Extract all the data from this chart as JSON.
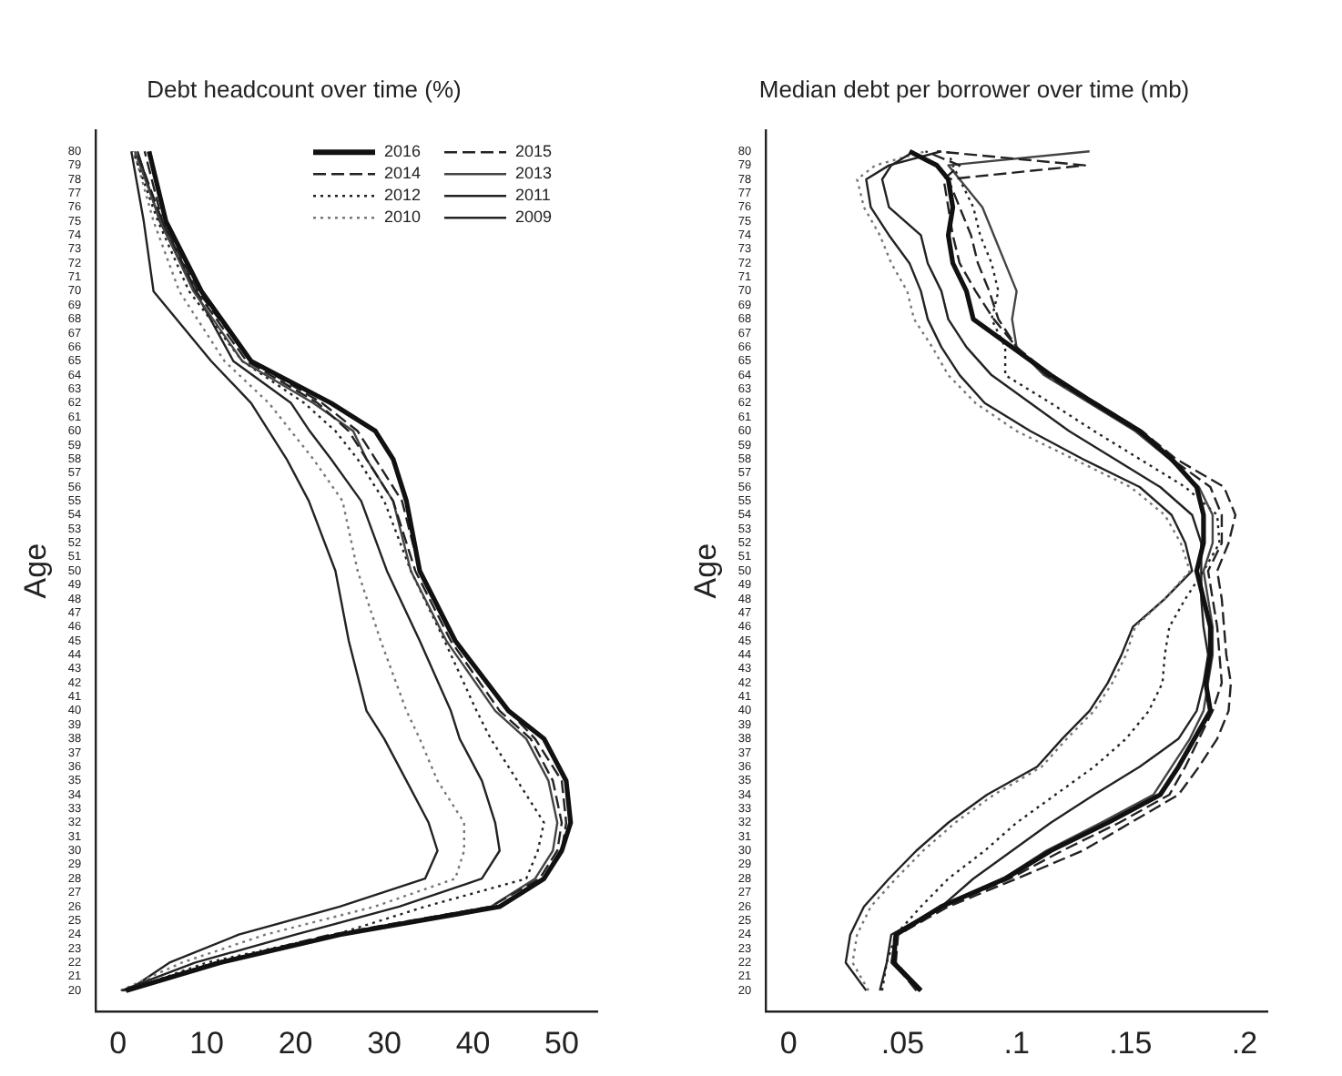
{
  "chart_data": [
    {
      "type": "line",
      "title": "Debt headcount over time (%)",
      "ylabel": "Age",
      "xlim": [
        -2.5,
        54
      ],
      "xticks": [
        0,
        10,
        20,
        30,
        40,
        50
      ],
      "ylim": [
        18.5,
        81.5
      ],
      "yticks": [
        20,
        21,
        22,
        23,
        24,
        25,
        26,
        27,
        28,
        29,
        30,
        31,
        32,
        33,
        34,
        35,
        36,
        37,
        38,
        39,
        40,
        41,
        42,
        43,
        44,
        45,
        46,
        47,
        48,
        49,
        50,
        51,
        52,
        53,
        54,
        55,
        56,
        57,
        58,
        59,
        60,
        61,
        62,
        63,
        64,
        65,
        66,
        67,
        68,
        69,
        70,
        71,
        72,
        73,
        74,
        75,
        76,
        77,
        78,
        79,
        80
      ],
      "grid": false,
      "marker": "none",
      "legend": "top right",
      "series": [
        {
          "name": "2016",
          "color": "#111111",
          "line_style": "solid",
          "x": [
            0.9,
            11.5,
            25,
            43,
            48,
            50,
            51,
            50.5,
            48,
            44,
            38,
            34,
            32.5,
            31,
            29,
            24,
            15,
            9.4,
            5.4,
            3.5
          ],
          "values": [
            20,
            22,
            24,
            26,
            28,
            30,
            32,
            35,
            38,
            40,
            45,
            50,
            55,
            58,
            60,
            62,
            65,
            70,
            75,
            80
          ]
        },
        {
          "name": "2015",
          "color": "#222222",
          "line_style": "dashed",
          "x": [
            0.8,
            11,
            25,
            43,
            48,
            50,
            50.5,
            50,
            47,
            44,
            38,
            34,
            32,
            29,
            27,
            23,
            15,
            9,
            5,
            3
          ],
          "values": [
            20,
            22,
            24,
            26,
            28,
            30,
            32,
            35,
            38,
            40,
            45,
            50,
            55,
            58,
            60,
            62,
            65,
            70,
            75,
            80
          ]
        },
        {
          "name": "2014",
          "color": "#222222",
          "line_style": "dashed",
          "x": [
            0.6,
            11,
            24,
            42,
            47.5,
            49.5,
            50,
            49,
            46.5,
            43,
            37.5,
            33.5,
            31,
            28,
            26,
            22.5,
            14.5,
            8.8,
            5,
            2.1
          ],
          "values": [
            20,
            22,
            24,
            26,
            28,
            30,
            32,
            35,
            38,
            40,
            45,
            50,
            55,
            58,
            60,
            62,
            65,
            70,
            75,
            80
          ]
        },
        {
          "name": "2013",
          "color": "#444444",
          "line_style": "solid",
          "x": [
            0.5,
            11,
            24.5,
            42,
            47,
            49,
            49.5,
            48.5,
            46,
            42.5,
            37,
            33,
            31,
            28,
            26.5,
            22,
            14,
            8.5,
            4.8,
            1.9
          ],
          "values": [
            20,
            22,
            24,
            26,
            28,
            30,
            32,
            35,
            38,
            40,
            45,
            50,
            55,
            58,
            60,
            62,
            65,
            70,
            75,
            80
          ]
        },
        {
          "name": "2012",
          "color": "#222222",
          "line_style": "dotted",
          "x": [
            1,
            10,
            24.5,
            34.6,
            46,
            47.3,
            48,
            45,
            42,
            40.4,
            36.8,
            33,
            30,
            27,
            24.5,
            21,
            14,
            8,
            4.5,
            1.7
          ],
          "values": [
            20,
            22,
            24,
            26,
            28,
            30,
            32,
            35,
            38,
            40,
            45,
            50,
            55,
            58,
            60,
            62,
            65,
            70,
            75,
            80
          ]
        },
        {
          "name": "2011",
          "color": "#222222",
          "line_style": "solid",
          "x": [
            0.4,
            8.7,
            20,
            31.7,
            41,
            43,
            42.5,
            41,
            38.5,
            37.5,
            34,
            30.3,
            27.4,
            24,
            21.6,
            19.5,
            13,
            8.7,
            4.7,
            2.2
          ],
          "values": [
            20,
            22,
            24,
            26,
            28,
            30,
            32,
            35,
            38,
            40,
            45,
            50,
            55,
            58,
            60,
            62,
            65,
            70,
            75,
            80
          ]
        },
        {
          "name": "2010",
          "color": "#777777",
          "line_style": "dotted",
          "x": [
            0.3,
            7.2,
            16.6,
            28.9,
            38,
            39,
            39,
            36,
            34,
            32.5,
            29.6,
            27,
            25.3,
            22,
            19.5,
            17,
            12,
            6.9,
            4,
            1.8
          ],
          "values": [
            20,
            22,
            24,
            26,
            28,
            30,
            32,
            35,
            38,
            40,
            45,
            50,
            55,
            58,
            60,
            62,
            65,
            70,
            75,
            80
          ]
        },
        {
          "name": "2009",
          "color": "#222222",
          "line_style": "solid",
          "x": [
            1.1,
            5.8,
            13.6,
            25,
            34.6,
            36,
            35,
            32.5,
            30,
            28,
            26,
            24.5,
            21.5,
            19,
            17,
            15,
            10.5,
            4,
            2.9,
            1.5
          ],
          "values": [
            20,
            22,
            24,
            26,
            28,
            30,
            32,
            35,
            38,
            40,
            45,
            50,
            55,
            58,
            60,
            62,
            65,
            70,
            75,
            80
          ]
        }
      ]
    },
    {
      "type": "line",
      "title": "Median debt per borrower over time (mb)",
      "ylabel": "Age",
      "xlim": [
        -0.01,
        0.21
      ],
      "xticks": [
        0,
        {
          "value": 0.05,
          "label": ".05"
        },
        {
          "value": 0.1,
          "label": ".1"
        },
        {
          "value": 0.15,
          "label": ".15"
        },
        {
          "value": 0.2,
          "label": ".2"
        }
      ],
      "ylim": [
        18.5,
        81.5
      ],
      "yticks": [
        20,
        21,
        22,
        23,
        24,
        25,
        26,
        27,
        28,
        29,
        30,
        31,
        32,
        33,
        34,
        35,
        36,
        37,
        38,
        39,
        40,
        41,
        42,
        43,
        44,
        45,
        46,
        47,
        48,
        49,
        50,
        51,
        52,
        53,
        54,
        55,
        56,
        57,
        58,
        59,
        60,
        61,
        62,
        63,
        64,
        65,
        66,
        67,
        68,
        69,
        70,
        71,
        72,
        73,
        74,
        75,
        76,
        77,
        78,
        79,
        80
      ],
      "grid": false,
      "marker": "none",
      "series": [
        {
          "color": "#111111",
          "line_style": "solid",
          "x": [
            0.058,
            0.046,
            0.047,
            0.067,
            0.095,
            0.115,
            0.14,
            0.163,
            0.171,
            0.178,
            0.185,
            0.183,
            0.185,
            0.185,
            0.182,
            0.179,
            0.182,
            0.182,
            0.179,
            0.168,
            0.154,
            0.134,
            0.115,
            0.098,
            0.081,
            0.078,
            0.072,
            0.07,
            0.072,
            0.07,
            0.065,
            0.053
          ],
          "values": [
            20,
            22,
            24,
            26,
            28,
            30,
            32,
            34,
            36,
            38,
            40,
            42,
            44,
            46,
            48,
            50,
            52,
            54,
            56,
            58,
            60,
            62,
            64,
            66,
            68,
            70,
            72,
            74,
            76,
            78,
            79,
            80
          ]
        },
        {
          "color": "#222222",
          "line_style": "dashed",
          "x": [
            0.058,
            0.047,
            0.048,
            0.07,
            0.1,
            0.129,
            0.15,
            0.171,
            0.18,
            0.188,
            0.193,
            0.194,
            0.192,
            0.191,
            0.19,
            0.188,
            0.193,
            0.196,
            0.191,
            0.17,
            0.155,
            0.135,
            0.115,
            0.1,
            0.09,
            0.082,
            0.075,
            0.072,
            0.07,
            0.068,
            0.075,
            0.06
          ],
          "values": [
            20,
            22,
            24,
            26,
            28,
            30,
            32,
            34,
            36,
            38,
            40,
            42,
            44,
            46,
            48,
            50,
            52,
            54,
            56,
            58,
            60,
            62,
            64,
            66,
            68,
            70,
            72,
            74,
            76,
            78,
            79,
            80
          ]
        },
        {
          "color": "#222222",
          "line_style": "dashed",
          "x": [
            0.056,
            0.046,
            0.047,
            0.068,
            0.097,
            0.12,
            0.145,
            0.167,
            0.174,
            0.18,
            0.186,
            0.19,
            0.189,
            0.188,
            0.186,
            0.184,
            0.19,
            0.19,
            0.185,
            0.168,
            0.153,
            0.133,
            0.113,
            0.1,
            0.092,
            0.088,
            0.083,
            0.08,
            0.075,
            0.07,
            0.13,
            0.065
          ],
          "values": [
            20,
            22,
            24,
            26,
            28,
            30,
            32,
            34,
            36,
            38,
            40,
            42,
            44,
            46,
            48,
            50,
            52,
            54,
            56,
            58,
            60,
            62,
            64,
            66,
            68,
            70,
            72,
            74,
            76,
            78,
            79,
            80
          ]
        },
        {
          "color": "#444444",
          "line_style": "solid",
          "x": [
            0.057,
            0.045,
            0.047,
            0.066,
            0.094,
            0.113,
            0.137,
            0.16,
            0.168,
            0.176,
            0.182,
            0.184,
            0.186,
            0.186,
            0.184,
            0.182,
            0.186,
            0.186,
            0.18,
            0.167,
            0.152,
            0.132,
            0.112,
            0.1,
            0.098,
            0.1,
            0.095,
            0.09,
            0.085,
            0.075,
            0.07,
            0.132
          ],
          "values": [
            20,
            22,
            24,
            26,
            28,
            30,
            32,
            34,
            36,
            38,
            40,
            42,
            44,
            46,
            48,
            50,
            52,
            54,
            56,
            58,
            60,
            62,
            64,
            66,
            68,
            70,
            72,
            74,
            76,
            78,
            79,
            80
          ]
        },
        {
          "color": "#222222",
          "line_style": "dotted",
          "x": [
            0.041,
            0.043,
            0.047,
            0.058,
            0.07,
            0.086,
            0.1,
            0.117,
            0.134,
            0.148,
            0.158,
            0.164,
            0.165,
            0.167,
            0.174,
            0.182,
            0.189,
            0.188,
            0.174,
            0.154,
            0.134,
            0.115,
            0.095,
            0.095,
            0.089,
            0.092,
            0.089,
            0.084,
            0.081,
            0.075,
            0.072,
            0.07
          ],
          "values": [
            20,
            22,
            24,
            26,
            28,
            30,
            32,
            34,
            36,
            38,
            40,
            42,
            44,
            46,
            48,
            50,
            52,
            54,
            56,
            58,
            60,
            62,
            64,
            66,
            68,
            70,
            72,
            74,
            76,
            78,
            79,
            80
          ]
        },
        {
          "color": "#222222",
          "line_style": "solid",
          "x": [
            0.04,
            0.043,
            0.045,
            0.067,
            0.081,
            0.098,
            0.115,
            0.134,
            0.154,
            0.171,
            0.179,
            0.182,
            0.184,
            0.182,
            0.181,
            0.181,
            0.181,
            0.177,
            0.163,
            0.143,
            0.123,
            0.106,
            0.089,
            0.078,
            0.07,
            0.067,
            0.061,
            0.058,
            0.044,
            0.041,
            0.045,
            0.055
          ],
          "values": [
            20,
            22,
            24,
            26,
            28,
            30,
            32,
            34,
            36,
            38,
            40,
            42,
            44,
            46,
            48,
            50,
            52,
            54,
            56,
            58,
            60,
            62,
            64,
            66,
            68,
            70,
            72,
            74,
            76,
            78,
            79,
            80
          ]
        },
        {
          "color": "#777777",
          "line_style": "dotted",
          "x": [
            0.035,
            0.028,
            0.03,
            0.036,
            0.047,
            0.059,
            0.073,
            0.09,
            0.111,
            0.122,
            0.134,
            0.142,
            0.148,
            0.152,
            0.165,
            0.176,
            0.172,
            0.165,
            0.15,
            0.125,
            0.1,
            0.082,
            0.07,
            0.063,
            0.055,
            0.052,
            0.045,
            0.04,
            0.033,
            0.03,
            0.038,
            0.06
          ],
          "values": [
            20,
            22,
            24,
            26,
            28,
            30,
            32,
            34,
            36,
            38,
            40,
            42,
            44,
            46,
            48,
            50,
            52,
            54,
            56,
            58,
            60,
            62,
            64,
            66,
            68,
            70,
            72,
            74,
            76,
            78,
            79,
            80
          ]
        },
        {
          "color": "#222222",
          "line_style": "solid",
          "x": [
            0.034,
            0.025,
            0.027,
            0.033,
            0.044,
            0.056,
            0.07,
            0.087,
            0.109,
            0.12,
            0.132,
            0.14,
            0.146,
            0.151,
            0.165,
            0.177,
            0.174,
            0.168,
            0.154,
            0.129,
            0.106,
            0.086,
            0.075,
            0.067,
            0.061,
            0.058,
            0.053,
            0.044,
            0.036,
            0.034,
            0.044,
            0.067
          ],
          "values": [
            20,
            22,
            24,
            26,
            28,
            30,
            32,
            34,
            36,
            38,
            40,
            42,
            44,
            46,
            48,
            50,
            52,
            54,
            56,
            58,
            60,
            62,
            64,
            66,
            68,
            70,
            72,
            74,
            76,
            78,
            79,
            80
          ]
        }
      ]
    }
  ]
}
